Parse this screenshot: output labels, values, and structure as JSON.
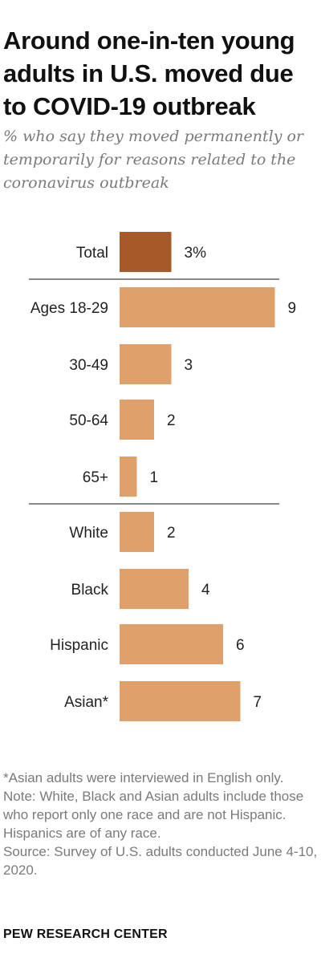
{
  "title": "Around one-in-ten young adults in U.S. moved due to COVID-19 outbreak",
  "subtitle": "% who say they moved permanently or temporarily for reasons related to the coronavirus outbreak",
  "notes": {
    "asian": "*Asian adults were interviewed in English only.",
    "note": "Note: White, Black and Asian adults include those who report only one race and are not Hispanic. Hispanics are of any race.",
    "source": "Source: Survey of U.S. adults conducted June 4-10, 2020."
  },
  "org": "PEW RESEARCH CENTER",
  "colors": {
    "total_bar": "#a65a29",
    "bar": "#e0a06b",
    "divider": "#888888"
  },
  "chart_data": {
    "type": "bar",
    "orientation": "horizontal",
    "categories": [
      "Total",
      "Ages 18-29",
      "30-49",
      "50-64",
      "65+",
      "White",
      "Black",
      "Hispanic",
      "Asian*"
    ],
    "values": [
      3,
      9,
      3,
      2,
      1,
      2,
      4,
      6,
      7
    ],
    "value_labels": [
      "3%",
      "9",
      "3",
      "2",
      "1",
      "2",
      "4",
      "6",
      "7"
    ],
    "groups": [
      [
        "Total"
      ],
      [
        "Ages 18-29",
        "30-49",
        "50-64",
        "65+"
      ],
      [
        "White",
        "Black",
        "Hispanic",
        "Asian*"
      ]
    ],
    "xlim": [
      0,
      9
    ],
    "grid": false,
    "legend": "none"
  }
}
